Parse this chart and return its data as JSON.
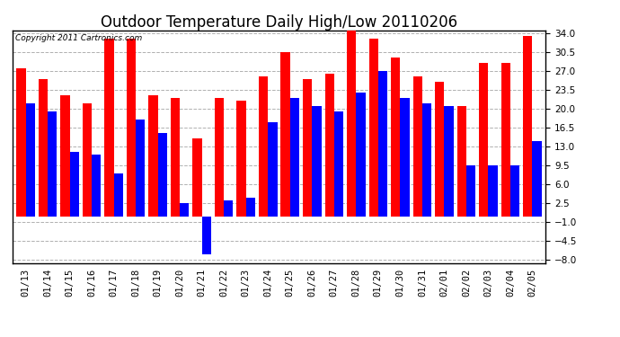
{
  "title": "Outdoor Temperature Daily High/Low 20110206",
  "copyright": "Copyright 2011 Cartronics.com",
  "dates": [
    "01/13",
    "01/14",
    "01/15",
    "01/16",
    "01/17",
    "01/18",
    "01/19",
    "01/20",
    "01/21",
    "01/22",
    "01/23",
    "01/24",
    "01/25",
    "01/26",
    "01/27",
    "01/28",
    "01/29",
    "01/30",
    "01/31",
    "02/01",
    "02/02",
    "02/03",
    "02/04",
    "02/05"
  ],
  "highs": [
    27.5,
    25.5,
    22.5,
    21.0,
    33.0,
    33.0,
    22.5,
    22.0,
    14.5,
    22.0,
    21.5,
    26.0,
    30.5,
    25.5,
    26.5,
    35.0,
    33.0,
    29.5,
    26.0,
    25.0,
    20.5,
    28.5,
    28.5,
    33.5
  ],
  "lows": [
    21.0,
    19.5,
    12.0,
    11.5,
    8.0,
    18.0,
    15.5,
    2.5,
    -7.0,
    3.0,
    3.5,
    17.5,
    22.0,
    20.5,
    19.5,
    23.0,
    27.0,
    22.0,
    21.0,
    20.5,
    9.5,
    9.5,
    9.5,
    14.0
  ],
  "high_color": "#ff0000",
  "low_color": "#0000ff",
  "bg_color": "#ffffff",
  "grid_color": "#b0b0b0",
  "ylim_min": -8.5,
  "ylim_max": 34.5,
  "yticks": [
    34.0,
    30.5,
    27.0,
    23.5,
    20.0,
    16.5,
    13.0,
    9.5,
    6.0,
    2.5,
    -1.0,
    -4.5,
    -8.0
  ],
  "bar_width": 0.42,
  "title_fontsize": 12,
  "tick_fontsize": 7.5,
  "copyright_fontsize": 6.5
}
